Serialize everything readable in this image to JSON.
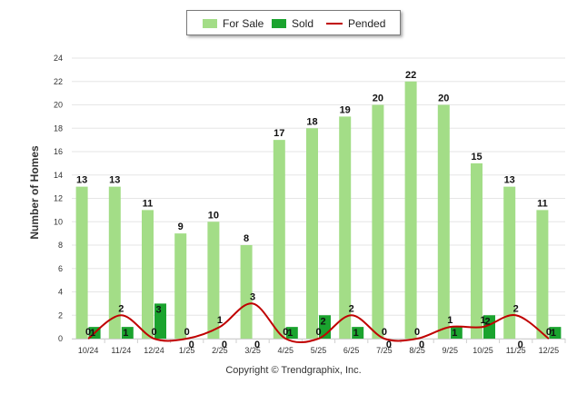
{
  "chart_data": {
    "type": "bar",
    "categories": [
      "10/24",
      "11/24",
      "12/24",
      "1/25",
      "2/25",
      "3/25",
      "4/25",
      "5/25",
      "6/25",
      "7/25",
      "8/25",
      "9/25",
      "10/25",
      "11/25",
      "12/25"
    ],
    "series": [
      {
        "name": "For Sale",
        "type": "bar",
        "color": "#a3dd87",
        "values": [
          13,
          13,
          11,
          9,
          10,
          8,
          17,
          18,
          19,
          20,
          22,
          20,
          15,
          13,
          11
        ]
      },
      {
        "name": "Sold",
        "type": "bar",
        "color": "#1aa32e",
        "values": [
          1,
          1,
          3,
          0,
          0,
          0,
          1,
          2,
          1,
          0,
          0,
          1,
          2,
          0,
          1
        ]
      },
      {
        "name": "Pended",
        "type": "line",
        "color": "#c00000",
        "values": [
          0,
          2,
          0,
          0,
          1,
          3,
          0,
          0,
          2,
          0,
          0,
          1,
          1,
          2,
          0
        ]
      }
    ],
    "point_labels": [
      {
        "for_sale": "13",
        "sold": "1",
        "pended": "0"
      },
      {
        "for_sale": "13",
        "sold": "1",
        "pended": "2"
      },
      {
        "for_sale": "11",
        "sold": "3",
        "pended": "0"
      },
      {
        "for_sale": "9",
        "sold": "0",
        "pended": "0"
      },
      {
        "for_sale": "10",
        "sold": "0",
        "pended": "1"
      },
      {
        "for_sale": "8",
        "sold": "0",
        "pended": "3"
      },
      {
        "for_sale": "17",
        "sold": "1",
        "pended": "0"
      },
      {
        "for_sale": "18",
        "sold": "2",
        "pended": "0"
      },
      {
        "for_sale": "19",
        "sold": "1",
        "pended": "2"
      },
      {
        "for_sale": "20",
        "sold": "0",
        "pended": "0"
      },
      {
        "for_sale": "22",
        "sold": "0",
        "pended": "0"
      },
      {
        "for_sale": "20",
        "sold": "1",
        "pended": "1"
      },
      {
        "for_sale": "15",
        "sold": "2",
        "pended": "1"
      },
      {
        "for_sale": "13",
        "sold": "0",
        "pended": "2"
      },
      {
        "for_sale": "11",
        "sold": "1",
        "pended": "0"
      }
    ],
    "ylabel": "Number of Homes",
    "ylim": [
      0,
      24
    ],
    "yticks": [
      "0",
      "2",
      "4",
      "6",
      "8",
      "10",
      "12",
      "14",
      "16",
      "18",
      "20",
      "22",
      "24"
    ],
    "legend": [
      "For Sale",
      "Sold",
      "Pended"
    ],
    "legend_position": "top-center",
    "grid": true
  },
  "copyright": "Copyright © Trendgraphix, Inc."
}
